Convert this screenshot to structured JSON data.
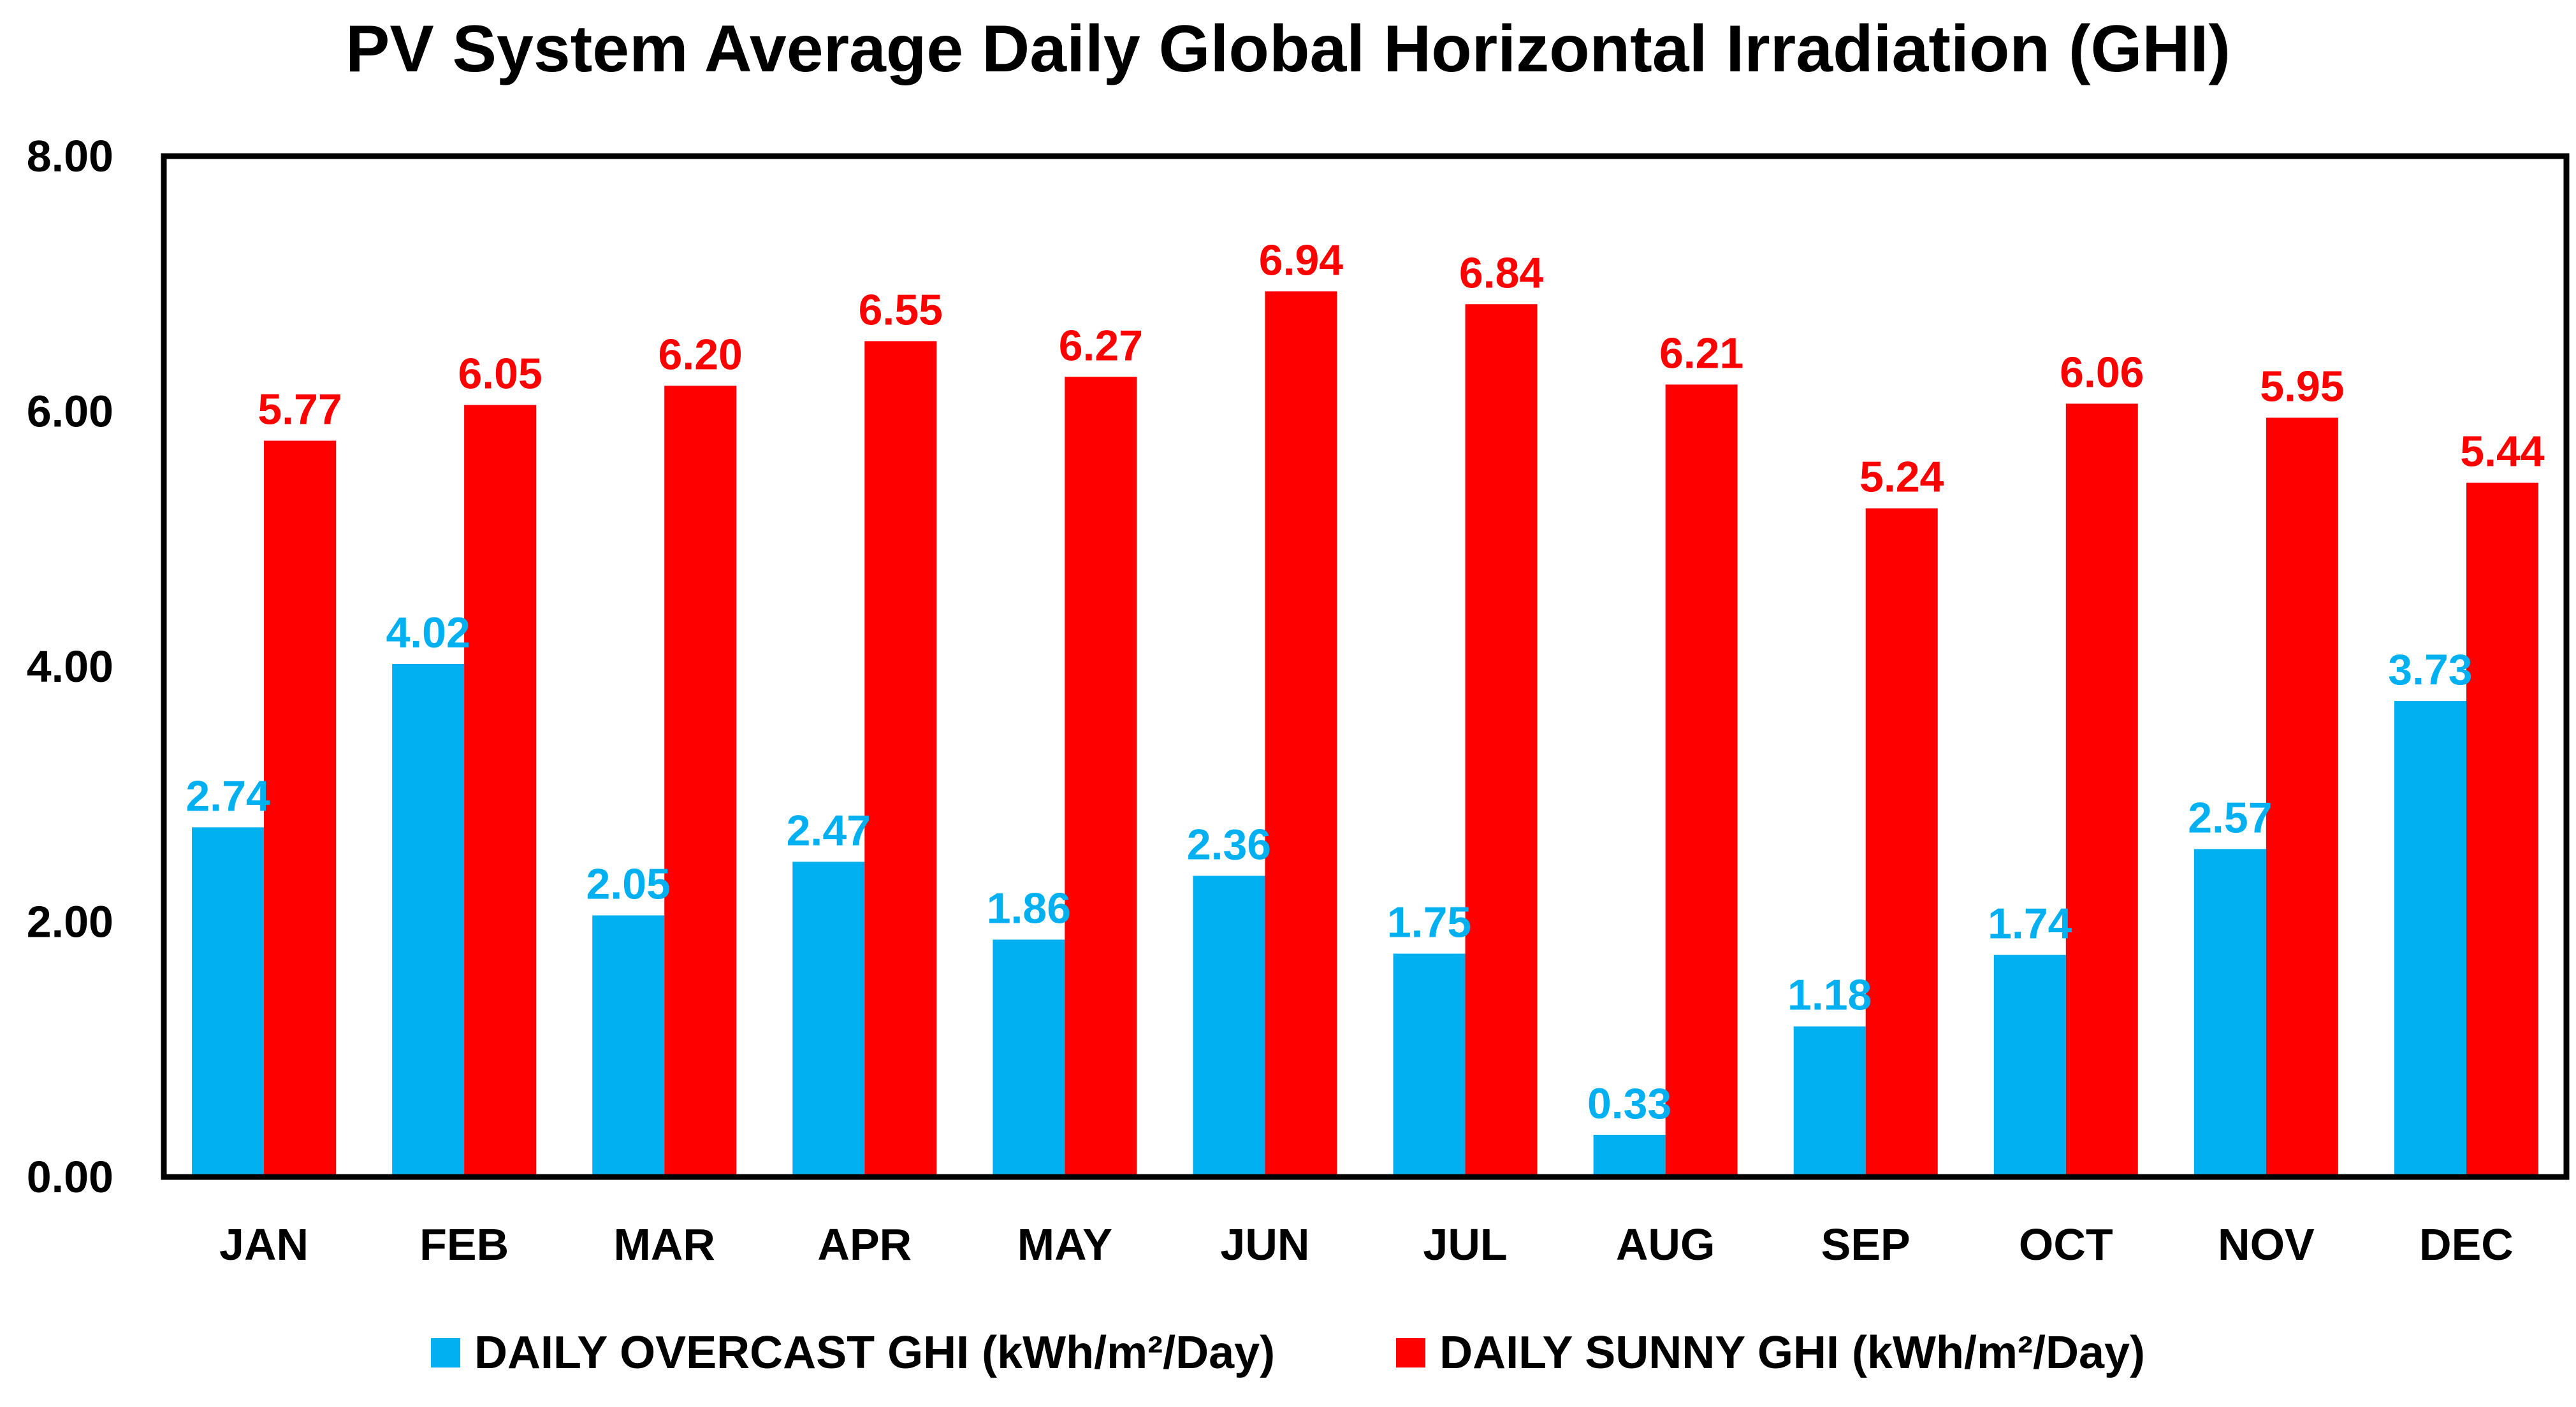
{
  "chart_data": {
    "type": "bar",
    "title": "PV System Average Daily Global Horizontal Irradiation (GHI)",
    "xlabel": "",
    "ylabel": "",
    "categories": [
      "JAN",
      "FEB",
      "MAR",
      "APR",
      "MAY",
      "JUN",
      "JUL",
      "AUG",
      "SEP",
      "OCT",
      "NOV",
      "DEC"
    ],
    "series": [
      {
        "name": "DAILY OVERCAST GHI (kWh/m²/Day)",
        "color": "#00B0F0",
        "labelColor": "#00B0F0",
        "values": [
          2.74,
          4.02,
          2.05,
          2.47,
          1.86,
          2.36,
          1.75,
          0.33,
          1.18,
          1.74,
          2.57,
          3.73
        ]
      },
      {
        "name": "DAILY SUNNY GHI (kWh/m²/Day)",
        "color": "#FF0000",
        "labelColor": "#FF0000",
        "values": [
          5.77,
          6.05,
          6.2,
          6.55,
          6.27,
          6.94,
          6.84,
          6.21,
          5.24,
          6.06,
          5.95,
          5.44
        ]
      }
    ],
    "ylim": [
      0,
      8
    ],
    "yticks": [
      "0.00",
      "2.00",
      "4.00",
      "6.00",
      "8.00"
    ],
    "grid": false,
    "legend": "bottom-center"
  }
}
